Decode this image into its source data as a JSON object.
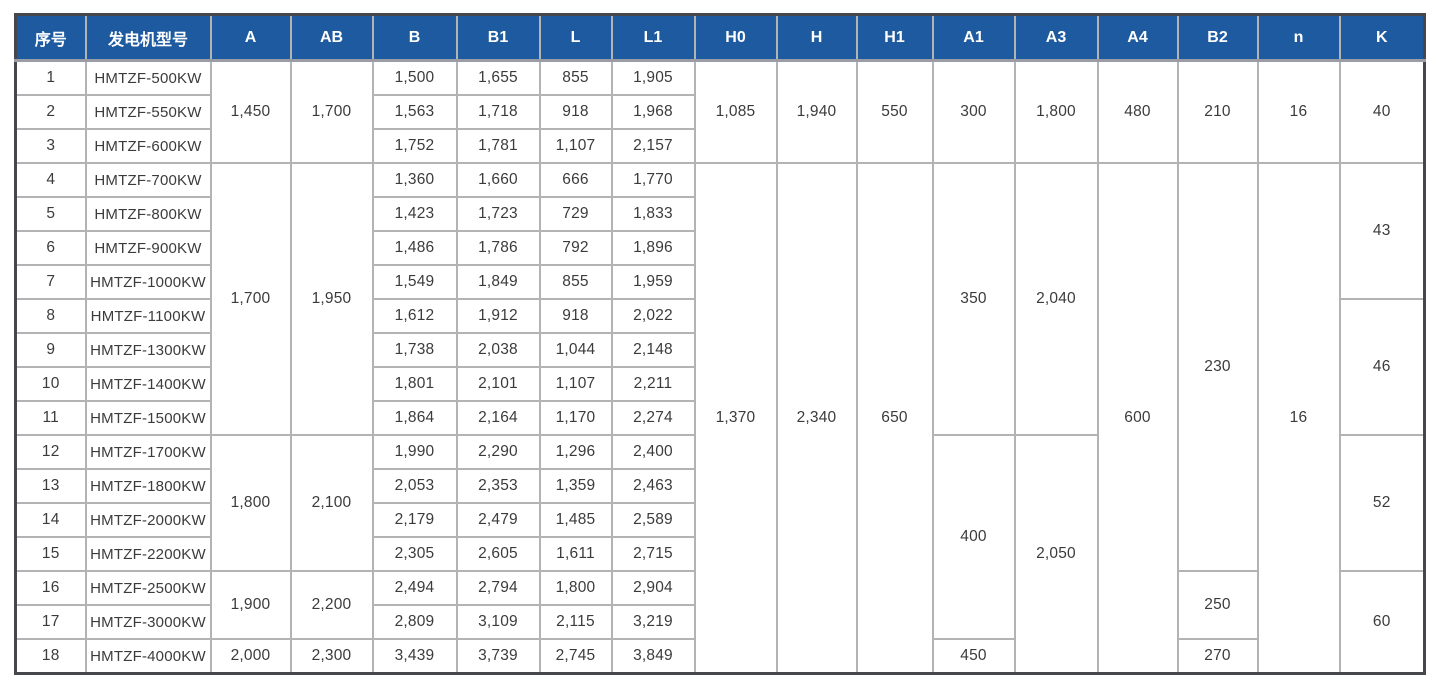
{
  "table": {
    "columns": [
      "序号",
      "发电机型号",
      "A",
      "AB",
      "B",
      "B1",
      "L",
      "L1",
      "H0",
      "H",
      "H1",
      "A1",
      "A3",
      "A4",
      "B2",
      "n",
      "K"
    ],
    "rows": [
      [
        {
          "v": "1"
        },
        {
          "v": "HMTZF-500KW"
        },
        {
          "v": "1,450",
          "rs": 3
        },
        {
          "v": "1,700",
          "rs": 3
        },
        {
          "v": "1,500"
        },
        {
          "v": "1,655"
        },
        {
          "v": "855"
        },
        {
          "v": "1,905"
        },
        {
          "v": "1,085",
          "rs": 3
        },
        {
          "v": "1,940",
          "rs": 3
        },
        {
          "v": "550",
          "rs": 3
        },
        {
          "v": "300",
          "rs": 3
        },
        {
          "v": "1,800",
          "rs": 3
        },
        {
          "v": "480",
          "rs": 3
        },
        {
          "v": "210",
          "rs": 3
        },
        {
          "v": "16",
          "rs": 3
        },
        {
          "v": "40",
          "rs": 3
        }
      ],
      [
        {
          "v": "2"
        },
        {
          "v": "HMTZF-550KW"
        },
        {
          "v": "1,563"
        },
        {
          "v": "1,718"
        },
        {
          "v": "918"
        },
        {
          "v": "1,968"
        }
      ],
      [
        {
          "v": "3"
        },
        {
          "v": "HMTZF-600KW"
        },
        {
          "v": "1,752"
        },
        {
          "v": "1,781"
        },
        {
          "v": "1,107"
        },
        {
          "v": "2,157"
        }
      ],
      [
        {
          "v": "4"
        },
        {
          "v": "HMTZF-700KW"
        },
        {
          "v": "1,700",
          "rs": 8
        },
        {
          "v": "1,950",
          "rs": 8
        },
        {
          "v": "1,360"
        },
        {
          "v": "1,660"
        },
        {
          "v": "666"
        },
        {
          "v": "1,770"
        },
        {
          "v": "1,370",
          "rs": 15
        },
        {
          "v": "2,340",
          "rs": 15
        },
        {
          "v": "650",
          "rs": 15
        },
        {
          "v": "350",
          "rs": 8
        },
        {
          "v": "2,040",
          "rs": 8
        },
        {
          "v": "600",
          "rs": 15
        },
        {
          "v": "230",
          "rs": 12
        },
        {
          "v": "16",
          "rs": 15
        },
        {
          "v": "43",
          "rs": 4
        }
      ],
      [
        {
          "v": "5"
        },
        {
          "v": "HMTZF-800KW"
        },
        {
          "v": "1,423"
        },
        {
          "v": "1,723"
        },
        {
          "v": "729"
        },
        {
          "v": "1,833"
        }
      ],
      [
        {
          "v": "6"
        },
        {
          "v": "HMTZF-900KW"
        },
        {
          "v": "1,486"
        },
        {
          "v": "1,786"
        },
        {
          "v": "792"
        },
        {
          "v": "1,896"
        }
      ],
      [
        {
          "v": "7"
        },
        {
          "v": "HMTZF-1000KW"
        },
        {
          "v": "1,549"
        },
        {
          "v": "1,849"
        },
        {
          "v": "855"
        },
        {
          "v": "1,959"
        }
      ],
      [
        {
          "v": "8"
        },
        {
          "v": "HMTZF-1100KW"
        },
        {
          "v": "1,612"
        },
        {
          "v": "1,912"
        },
        {
          "v": "918"
        },
        {
          "v": "2,022"
        },
        {
          "v": "46",
          "rs": 4
        }
      ],
      [
        {
          "v": "9"
        },
        {
          "v": "HMTZF-1300KW"
        },
        {
          "v": "1,738"
        },
        {
          "v": "2,038"
        },
        {
          "v": "1,044"
        },
        {
          "v": "2,148"
        }
      ],
      [
        {
          "v": "10"
        },
        {
          "v": "HMTZF-1400KW"
        },
        {
          "v": "1,801"
        },
        {
          "v": "2,101"
        },
        {
          "v": "1,107"
        },
        {
          "v": "2,211"
        }
      ],
      [
        {
          "v": "11"
        },
        {
          "v": "HMTZF-1500KW"
        },
        {
          "v": "1,864"
        },
        {
          "v": "2,164"
        },
        {
          "v": "1,170"
        },
        {
          "v": "2,274"
        }
      ],
      [
        {
          "v": "12"
        },
        {
          "v": "HMTZF-1700KW"
        },
        {
          "v": "1,800",
          "rs": 4
        },
        {
          "v": "2,100",
          "rs": 4
        },
        {
          "v": "1,990"
        },
        {
          "v": "2,290"
        },
        {
          "v": "1,296"
        },
        {
          "v": "2,400"
        },
        {
          "v": "400",
          "rs": 6
        },
        {
          "v": "2,050",
          "rs": 7
        },
        {
          "v": "52",
          "rs": 4
        }
      ],
      [
        {
          "v": "13"
        },
        {
          "v": "HMTZF-1800KW"
        },
        {
          "v": "2,053"
        },
        {
          "v": "2,353"
        },
        {
          "v": "1,359"
        },
        {
          "v": "2,463"
        }
      ],
      [
        {
          "v": "14"
        },
        {
          "v": "HMTZF-2000KW"
        },
        {
          "v": "2,179"
        },
        {
          "v": "2,479"
        },
        {
          "v": "1,485"
        },
        {
          "v": "2,589"
        }
      ],
      [
        {
          "v": "15"
        },
        {
          "v": "HMTZF-2200KW"
        },
        {
          "v": "2,305"
        },
        {
          "v": "2,605"
        },
        {
          "v": "1,611"
        },
        {
          "v": "2,715"
        }
      ],
      [
        {
          "v": "16"
        },
        {
          "v": "HMTZF-2500KW"
        },
        {
          "v": "1,900",
          "rs": 2
        },
        {
          "v": "2,200",
          "rs": 2
        },
        {
          "v": "2,494"
        },
        {
          "v": "2,794"
        },
        {
          "v": "1,800"
        },
        {
          "v": "2,904"
        },
        {
          "v": "250",
          "rs": 2
        },
        {
          "v": "60",
          "rs": 3
        }
      ],
      [
        {
          "v": "17"
        },
        {
          "v": "HMTZF-3000KW"
        },
        {
          "v": "2,809"
        },
        {
          "v": "3,109"
        },
        {
          "v": "2,115"
        },
        {
          "v": "3,219"
        }
      ],
      [
        {
          "v": "18"
        },
        {
          "v": "HMTZF-4000KW"
        },
        {
          "v": "2,000"
        },
        {
          "v": "2,300"
        },
        {
          "v": "3,439"
        },
        {
          "v": "3,739"
        },
        {
          "v": "2,745"
        },
        {
          "v": "3,849"
        },
        {
          "v": "450"
        },
        {
          "v": "270"
        }
      ]
    ],
    "colors": {
      "header_bg": "#1e5aa0",
      "header_text": "#ffffff",
      "body_text": "#3b3b3b",
      "grid_line": "#b3b3b3",
      "outer_border": "#45474d"
    }
  }
}
